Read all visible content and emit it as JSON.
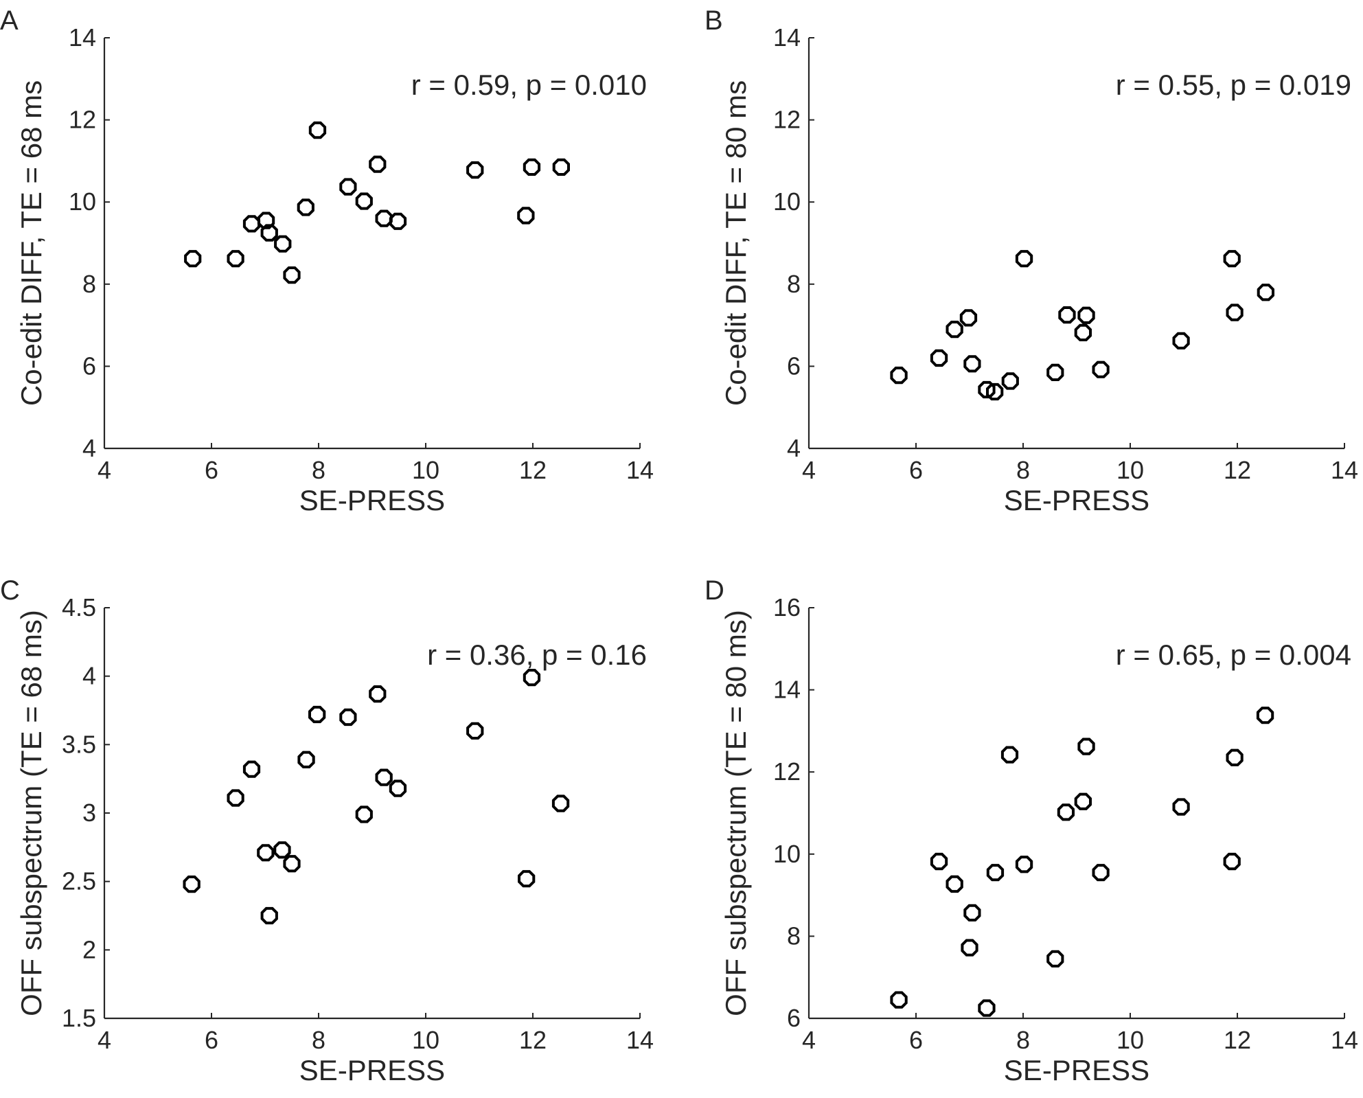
{
  "chart_data": [
    {
      "type": "scatter",
      "panel_label": "A",
      "stats_text": "r = 0.59, p = 0.010",
      "xlabel": "SE-PRESS",
      "ylabel": "Co-edit DIFF, TE = 68 ms",
      "xlim": [
        4,
        14
      ],
      "ylim": [
        4,
        14
      ],
      "xticks": [
        4,
        6,
        8,
        10,
        12,
        14
      ],
      "yticks": [
        4,
        6,
        8,
        10,
        12,
        14
      ],
      "xtick_labels": [
        "4",
        "6",
        "8",
        "10",
        "12",
        "14"
      ],
      "ytick_labels": [
        "4",
        "6",
        "8",
        "10",
        "12",
        "14"
      ],
      "points": [
        [
          5.65,
          8.62
        ],
        [
          6.45,
          8.62
        ],
        [
          6.75,
          9.47
        ],
        [
          7.02,
          9.55
        ],
        [
          7.08,
          9.25
        ],
        [
          7.33,
          8.98
        ],
        [
          7.5,
          8.22
        ],
        [
          7.76,
          9.87
        ],
        [
          7.98,
          11.75
        ],
        [
          8.55,
          10.37
        ],
        [
          8.85,
          10.02
        ],
        [
          9.1,
          10.92
        ],
        [
          9.22,
          9.6
        ],
        [
          9.48,
          9.53
        ],
        [
          10.92,
          10.78
        ],
        [
          11.87,
          9.67
        ],
        [
          11.98,
          10.85
        ],
        [
          12.53,
          10.85
        ]
      ]
    },
    {
      "type": "scatter",
      "panel_label": "B",
      "stats_text": "r = 0.55, p = 0.019",
      "xlabel": "SE-PRESS",
      "ylabel": "Co-edit DIFF, TE = 80 ms",
      "xlim": [
        4,
        14
      ],
      "ylim": [
        4,
        14
      ],
      "xticks": [
        4,
        6,
        8,
        10,
        12,
        14
      ],
      "yticks": [
        4,
        6,
        8,
        10,
        12,
        14
      ],
      "xtick_labels": [
        "4",
        "6",
        "8",
        "10",
        "12",
        "14"
      ],
      "ytick_labels": [
        "4",
        "6",
        "8",
        "10",
        "12",
        "14"
      ],
      "points": [
        [
          5.68,
          5.78
        ],
        [
          6.43,
          6.2
        ],
        [
          6.72,
          6.9
        ],
        [
          6.98,
          7.18
        ],
        [
          7.05,
          6.06
        ],
        [
          7.32,
          5.43
        ],
        [
          7.47,
          5.38
        ],
        [
          7.76,
          5.64
        ],
        [
          8.02,
          8.62
        ],
        [
          8.6,
          5.85
        ],
        [
          8.82,
          7.25
        ],
        [
          9.12,
          6.82
        ],
        [
          9.18,
          7.24
        ],
        [
          9.45,
          5.92
        ],
        [
          10.95,
          6.62
        ],
        [
          11.9,
          8.62
        ],
        [
          11.95,
          7.31
        ],
        [
          12.53,
          7.8
        ]
      ]
    },
    {
      "type": "scatter",
      "panel_label": "C",
      "stats_text": "r = 0.36, p = 0.16",
      "xlabel": "SE-PRESS",
      "ylabel": "OFF subspectrum (TE = 68 ms)",
      "xlim": [
        4,
        14
      ],
      "ylim": [
        1.5,
        4.5
      ],
      "xticks": [
        4,
        6,
        8,
        10,
        12,
        14
      ],
      "yticks": [
        1.5,
        2,
        2.5,
        3,
        3.5,
        4,
        4.5
      ],
      "xtick_labels": [
        "4",
        "6",
        "8",
        "10",
        "12",
        "14"
      ],
      "ytick_labels": [
        "1.5",
        "2",
        "2.5",
        "3",
        "3.5",
        "4",
        "4.5"
      ],
      "points": [
        [
          5.63,
          2.48
        ],
        [
          6.45,
          3.11
        ],
        [
          6.75,
          3.32
        ],
        [
          7.01,
          2.71
        ],
        [
          7.08,
          2.25
        ],
        [
          7.32,
          2.73
        ],
        [
          7.5,
          2.63
        ],
        [
          7.77,
          3.39
        ],
        [
          7.97,
          3.72
        ],
        [
          8.55,
          3.7
        ],
        [
          8.85,
          2.99
        ],
        [
          9.1,
          3.87
        ],
        [
          9.22,
          3.26
        ],
        [
          9.48,
          3.18
        ],
        [
          10.92,
          3.6
        ],
        [
          11.88,
          2.52
        ],
        [
          11.98,
          3.99
        ],
        [
          12.52,
          3.07
        ]
      ]
    },
    {
      "type": "scatter",
      "panel_label": "D",
      "stats_text": "r = 0.65, p = 0.004",
      "xlabel": "SE-PRESS",
      "ylabel": "OFF subspectrum (TE = 80 ms)",
      "xlim": [
        4,
        14
      ],
      "ylim": [
        6,
        16
      ],
      "xticks": [
        4,
        6,
        8,
        10,
        12,
        14
      ],
      "yticks": [
        6,
        8,
        10,
        12,
        14,
        16
      ],
      "xtick_labels": [
        "4",
        "6",
        "8",
        "10",
        "12",
        "14"
      ],
      "ytick_labels": [
        "6",
        "8",
        "10",
        "12",
        "14",
        "16"
      ],
      "points": [
        [
          5.68,
          6.45
        ],
        [
          6.43,
          9.82
        ],
        [
          6.72,
          9.27
        ],
        [
          7.0,
          7.72
        ],
        [
          7.05,
          8.57
        ],
        [
          7.32,
          6.25
        ],
        [
          7.48,
          9.55
        ],
        [
          7.75,
          12.42
        ],
        [
          8.02,
          9.75
        ],
        [
          8.6,
          7.45
        ],
        [
          8.8,
          11.02
        ],
        [
          9.12,
          11.28
        ],
        [
          9.18,
          12.62
        ],
        [
          9.45,
          9.55
        ],
        [
          10.95,
          11.15
        ],
        [
          11.9,
          9.82
        ],
        [
          11.95,
          12.35
        ],
        [
          12.52,
          13.38
        ]
      ]
    }
  ]
}
